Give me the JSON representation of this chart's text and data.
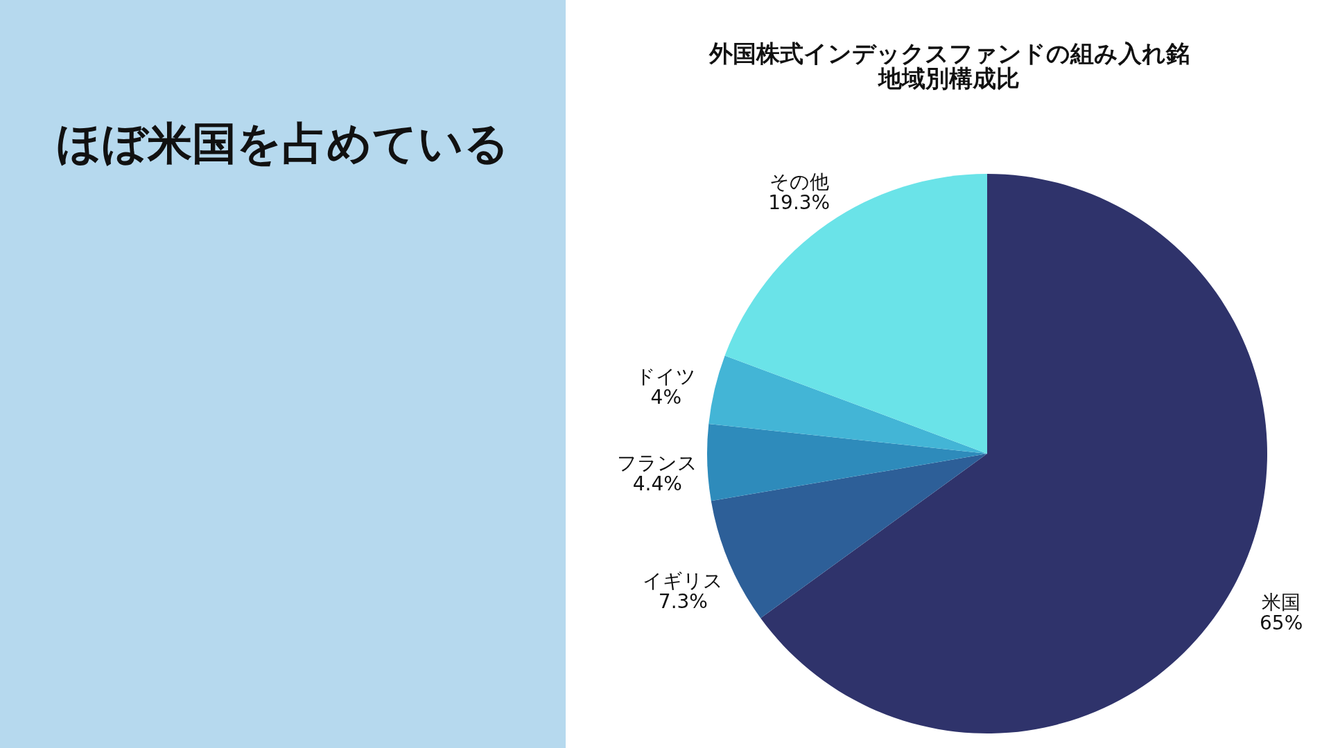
{
  "chart_data": {
    "type": "pie",
    "title": "外国株式インデックスファンドの組み入れ銘地域別構成比",
    "categories": [
      "米国",
      "イギリス",
      "フランス",
      "ドイツ",
      "その他"
    ],
    "values": [
      65,
      7.3,
      4.4,
      4,
      19.3
    ],
    "value_labels": [
      "65%",
      "7.3%",
      "4.4%",
      "4%",
      "19.3%"
    ],
    "colors": [
      "#2f336b",
      "#2d5f98",
      "#2e8bbb",
      "#43b5d6",
      "#6ae3e8"
    ],
    "annotations": [
      "ほぼ米国を占めている"
    ]
  }
}
